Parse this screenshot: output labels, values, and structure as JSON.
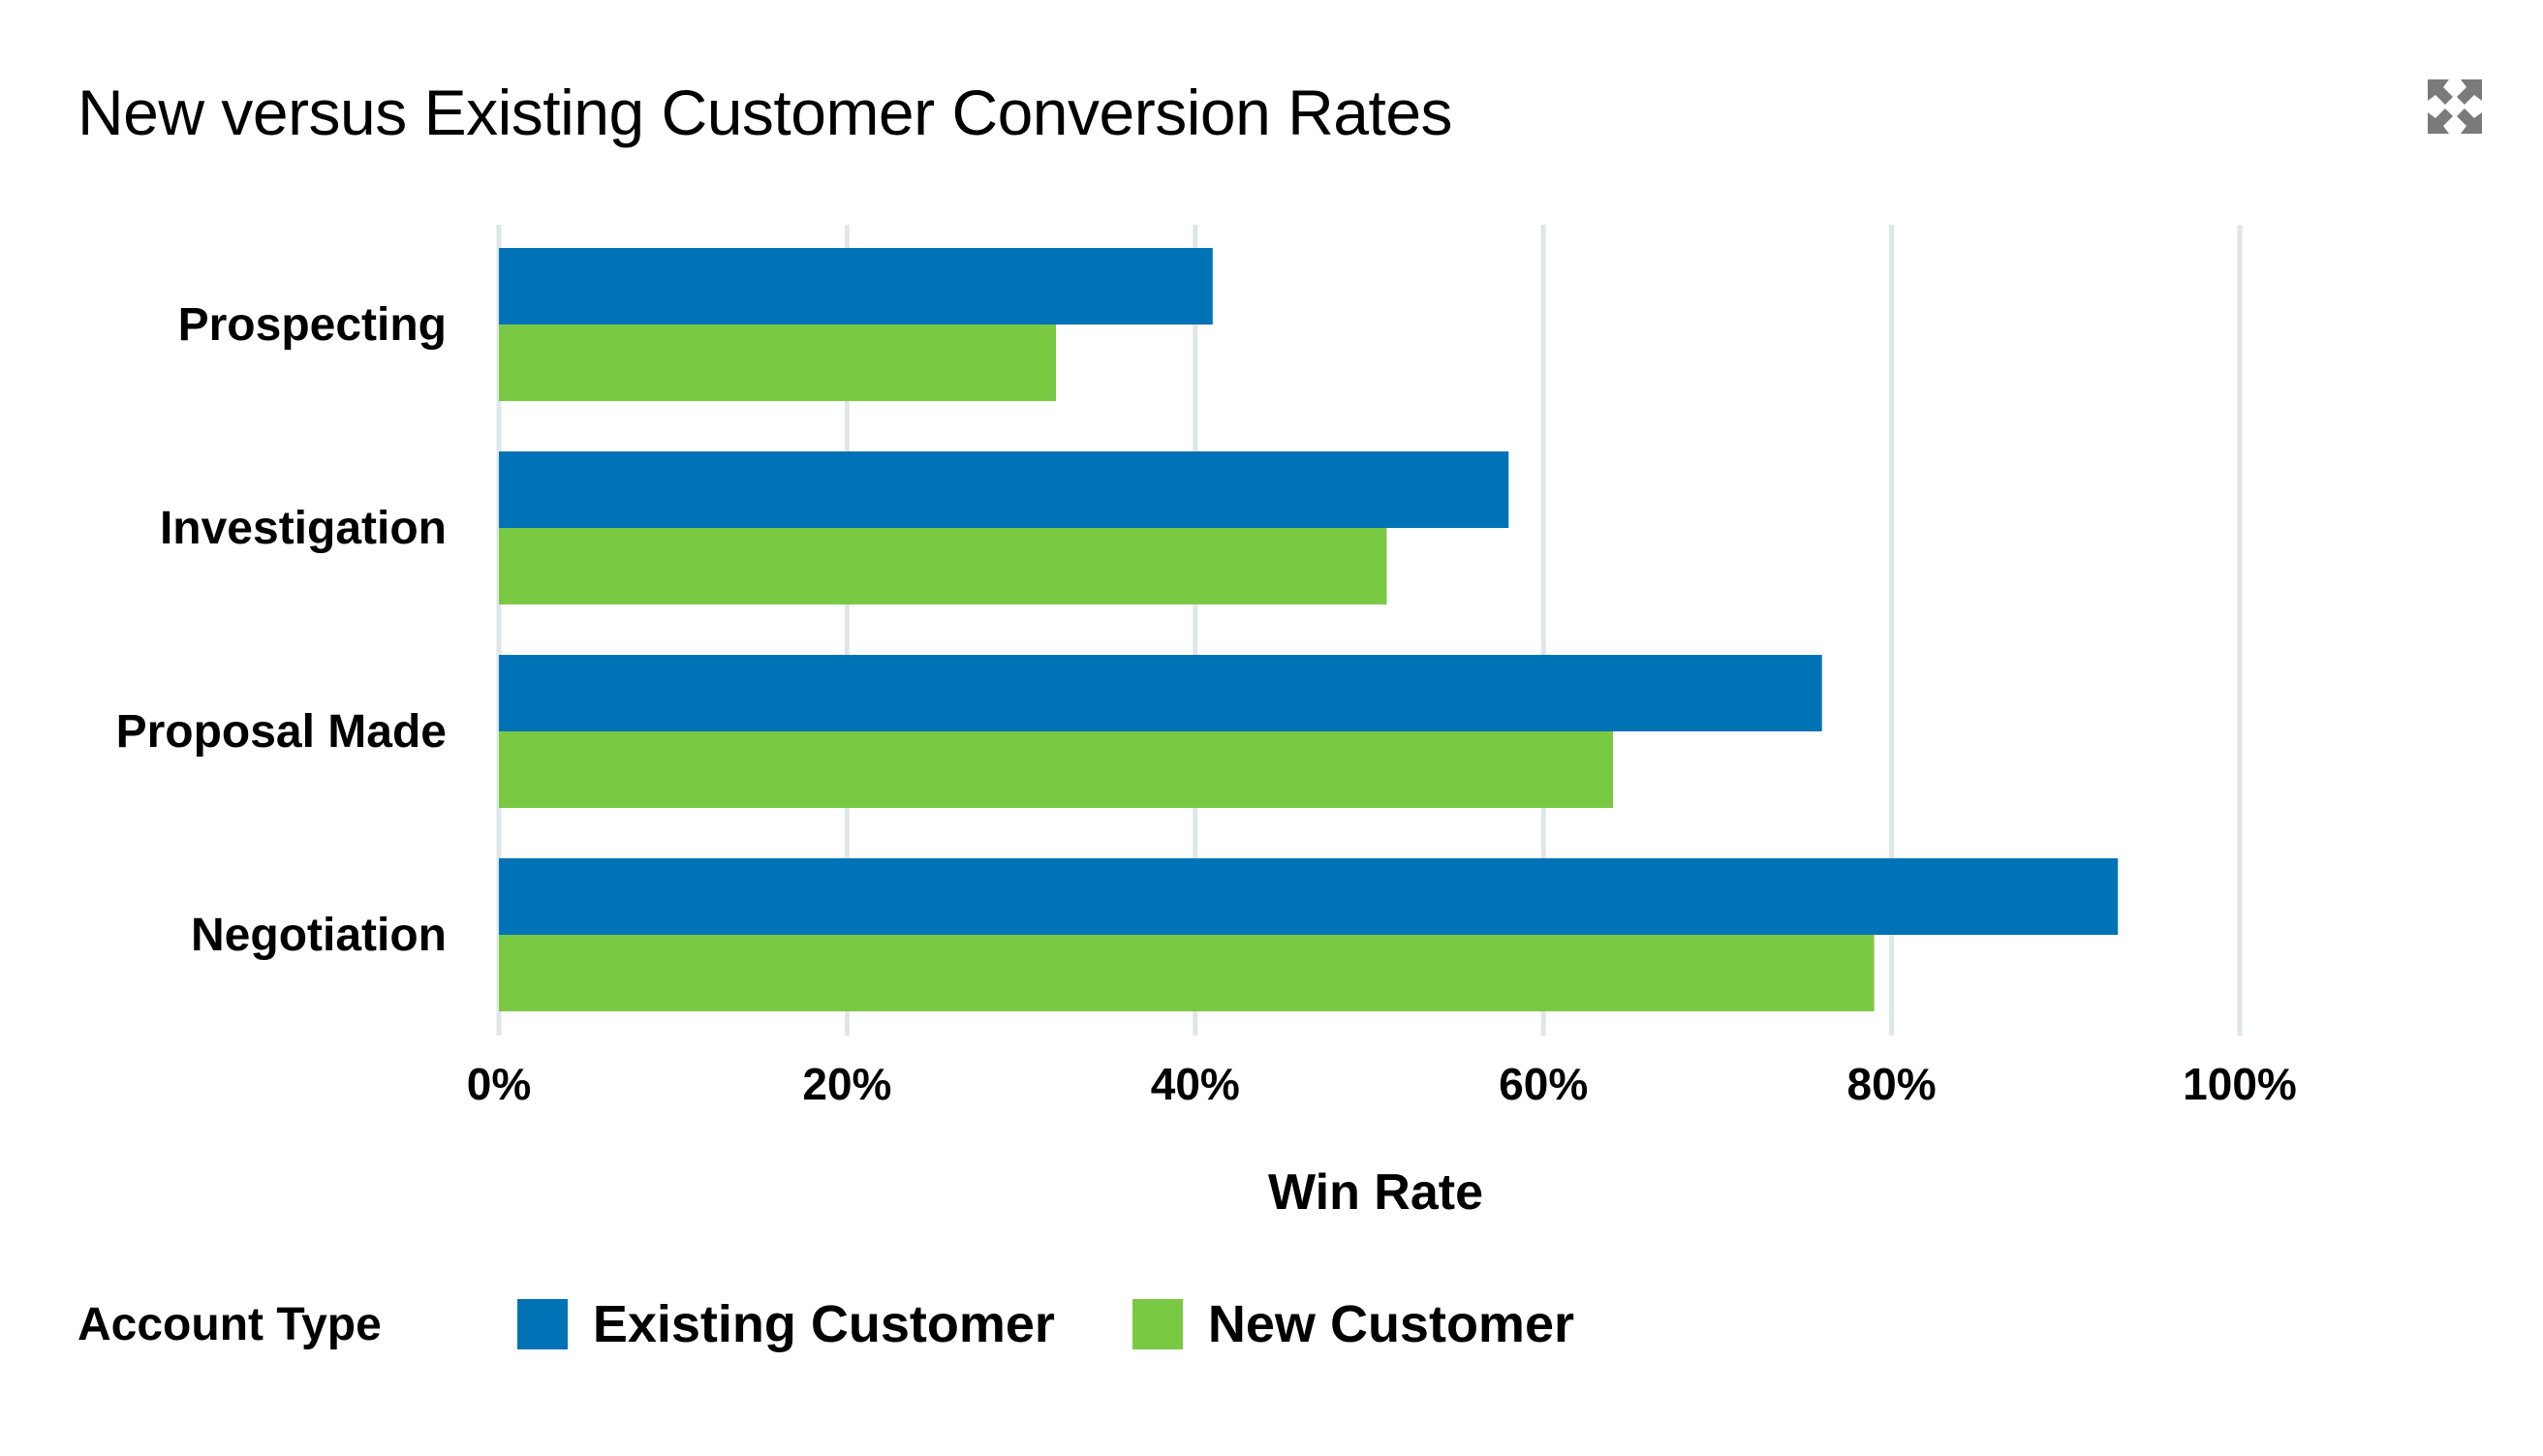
{
  "title": "New versus Existing Customer Conversion Rates",
  "expand_icon": "expand-icon",
  "legend": {
    "title": "Account Type",
    "items": [
      {
        "label": "Existing Customer",
        "color": "#0073b7"
      },
      {
        "label": "New Customer",
        "color": "#7ac943"
      }
    ]
  },
  "chart_data": {
    "type": "bar",
    "orientation": "horizontal",
    "title": "New versus Existing Customer Conversion Rates",
    "xlabel": "Win Rate",
    "ylabel": "",
    "categories": [
      "Prospecting",
      "Investigation",
      "Proposal Made",
      "Negotiation"
    ],
    "series": [
      {
        "name": "Existing Customer",
        "color": "#0073b7",
        "values": [
          41,
          58,
          76,
          93
        ]
      },
      {
        "name": "New Customer",
        "color": "#7ac943",
        "values": [
          32,
          51,
          64,
          79
        ]
      }
    ],
    "xlim": [
      0,
      100
    ],
    "x_ticks": [
      0,
      20,
      40,
      60,
      80,
      100
    ],
    "x_tick_labels": [
      "0%",
      "20%",
      "40%",
      "60%",
      "80%",
      "100%"
    ],
    "grid": "vertical",
    "legend_position": "bottom-left"
  }
}
